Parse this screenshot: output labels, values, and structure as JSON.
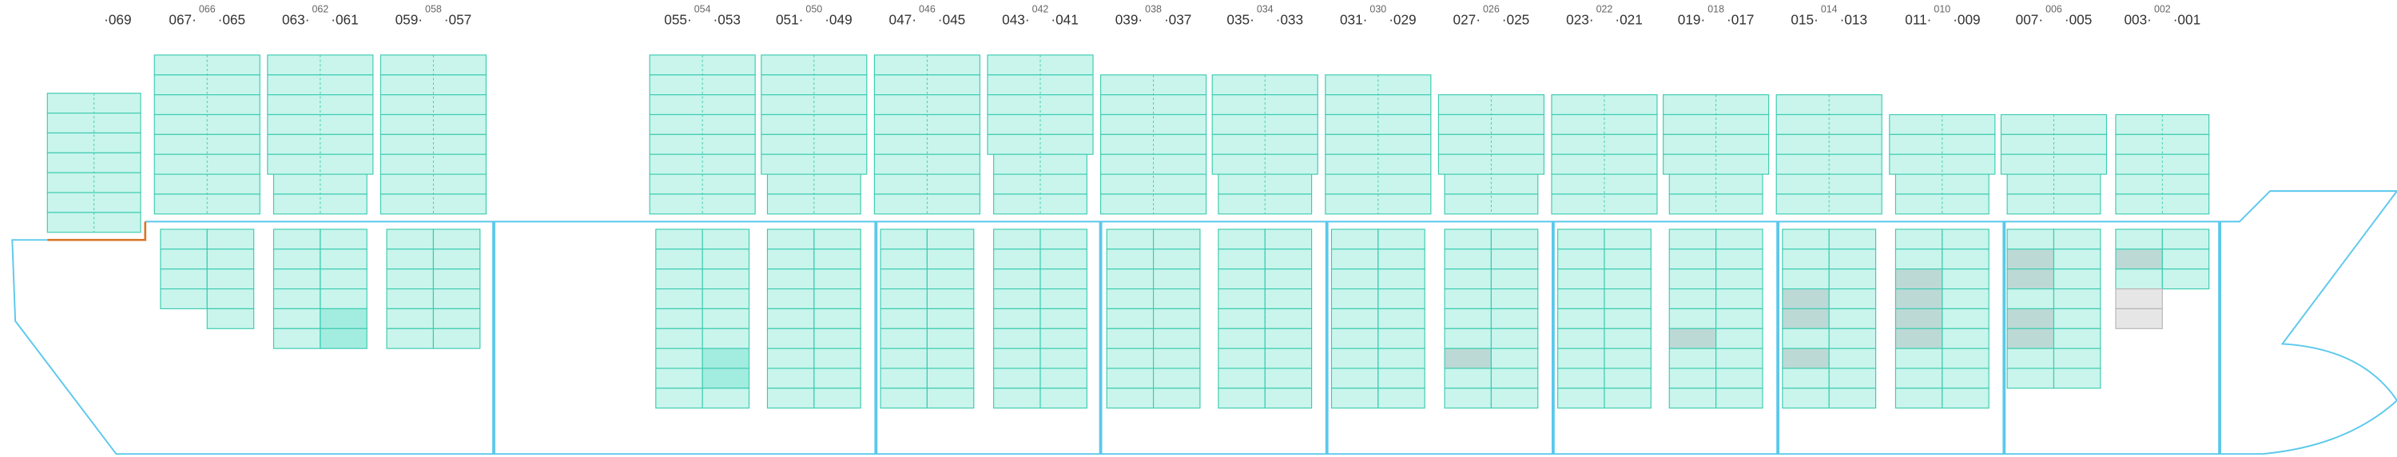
{
  "bays": [
    {
      "right": "·069"
    },
    {
      "left": "067·",
      "middle": "066",
      "right": "·065"
    },
    {
      "left": "063·",
      "middle": "062",
      "right": "·061"
    },
    {
      "left": "059·",
      "middle": "058",
      "right": "·057"
    },
    {
      "left": "055·",
      "middle": "054",
      "right": "·053"
    },
    {
      "left": "051·",
      "middle": "050",
      "right": "·049"
    },
    {
      "left": "047·",
      "middle": "046",
      "right": "·045"
    },
    {
      "left": "043·",
      "middle": "042",
      "right": "·041"
    },
    {
      "left": "039·",
      "middle": "038",
      "right": "·037"
    },
    {
      "left": "035·",
      "middle": "034",
      "right": "·033"
    },
    {
      "left": "031·",
      "middle": "030",
      "right": "·029"
    },
    {
      "left": "027·",
      "middle": "026",
      "right": "·025"
    },
    {
      "left": "023·",
      "middle": "022",
      "right": "·021"
    },
    {
      "left": "019·",
      "middle": "018",
      "right": "·017"
    },
    {
      "left": "015·",
      "middle": "014",
      "right": "·013"
    },
    {
      "left": "011·",
      "middle": "010",
      "right": "·009"
    },
    {
      "left": "007·",
      "middle": "006",
      "right": "·005"
    },
    {
      "left": "003·",
      "middle": "002",
      "right": "·001"
    }
  ]
}
